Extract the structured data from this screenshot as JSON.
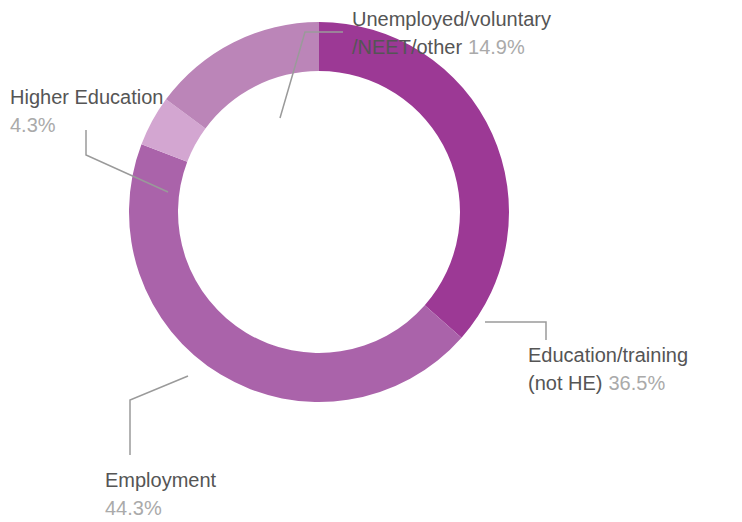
{
  "chart_data": {
    "type": "donut",
    "categories": [
      "Education/training (not HE)",
      "Employment",
      "Higher Education",
      "Unemployed/voluntary/NEET/other"
    ],
    "values": [
      36.5,
      44.3,
      4.3,
      14.9
    ],
    "value_labels": [
      "36.5%",
      "44.3%",
      "4.3%",
      "14.9%"
    ],
    "colors": [
      "#9c3995",
      "#aa63aa",
      "#d3a6d1",
      "#bb85b8"
    ],
    "data_labels": true
  }
}
